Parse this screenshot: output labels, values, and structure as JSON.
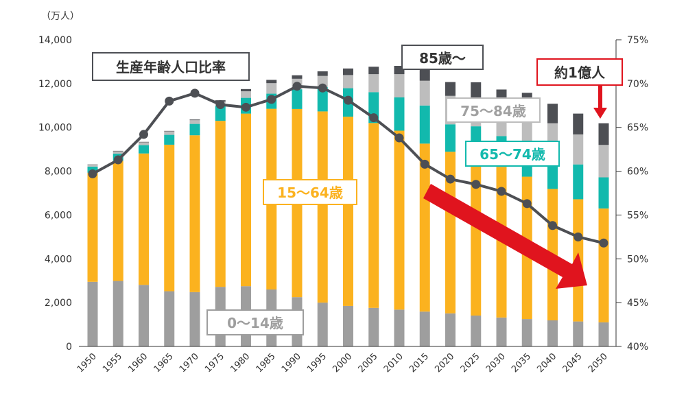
{
  "chart_data": {
    "type": "bar",
    "stacked": true,
    "title": "生産年齢人口比率",
    "y_unit_label": "（万人）",
    "ylim": [
      0,
      14000
    ],
    "y_ticks": [
      "0",
      "2,000",
      "4,000",
      "6,000",
      "8,000",
      "10,000",
      "12,000",
      "14,000"
    ],
    "y2lim": [
      40,
      75
    ],
    "y2_ticks": [
      "40%",
      "45%",
      "50%",
      "55%",
      "60%",
      "65%",
      "70%",
      "75%"
    ],
    "categories": [
      "1950",
      "1955",
      "1960",
      "1965",
      "1970",
      "1975",
      "1980",
      "1985",
      "1990",
      "1995",
      "2000",
      "2005",
      "2010",
      "2015",
      "2020",
      "2025",
      "2030",
      "2035",
      "2040",
      "2045",
      "2050"
    ],
    "series": [
      {
        "name": "0〜14歳",
        "color": "#9e9e9e",
        "values": [
          2950,
          2990,
          2810,
          2520,
          2480,
          2720,
          2750,
          2600,
          2250,
          2000,
          1850,
          1760,
          1680,
          1590,
          1510,
          1410,
          1320,
          1250,
          1190,
          1140,
          1100
        ]
      },
      {
        "name": "15〜64歳",
        "color": "#fbb21f",
        "values": [
          4980,
          5490,
          6000,
          6690,
          7160,
          7580,
          7880,
          8250,
          8590,
          8730,
          8640,
          8440,
          8170,
          7670,
          7380,
          7170,
          6880,
          6500,
          6000,
          5580,
          5200
        ]
      },
      {
        "name": "65〜74歳",
        "color": "#12b9ad",
        "values": [
          280,
          320,
          380,
          450,
          520,
          680,
          720,
          690,
          900,
          1110,
          1300,
          1410,
          1520,
          1740,
          1250,
          1470,
          1400,
          1420,
          1640,
          1590,
          1420
        ]
      },
      {
        "name": "75〜84歳",
        "color": "#bdbdbd",
        "values": [
          90,
          110,
          130,
          160,
          170,
          200,
          300,
          480,
          480,
          510,
          600,
          820,
          1060,
          1130,
          1300,
          1160,
          1150,
          1400,
          1360,
          1370,
          1480
        ]
      },
      {
        "name": "85歳〜",
        "color": "#4d4f54",
        "values": [
          10,
          20,
          20,
          20,
          30,
          60,
          100,
          150,
          160,
          210,
          300,
          340,
          380,
          510,
          630,
          850,
          980,
          1010,
          890,
          950,
          990
        ]
      }
    ],
    "line_series": {
      "name": "生産年齢人口比率",
      "color": "#4d4f54",
      "axis": "right",
      "values": [
        59.7,
        61.3,
        64.2,
        68.0,
        68.9,
        67.6,
        67.3,
        68.2,
        69.7,
        69.5,
        68.1,
        66.1,
        63.8,
        60.8,
        59.1,
        58.5,
        57.7,
        56.3,
        53.8,
        52.5,
        51.8
      ]
    },
    "annotations": [
      {
        "text": "85歳〜",
        "target": "85歳〜"
      },
      {
        "text": "75〜84歳",
        "target": "75〜84歳"
      },
      {
        "text": "65〜74歳",
        "target": "65〜74歳"
      },
      {
        "text": "15〜64歳",
        "target": "15〜64歳"
      },
      {
        "text": "0〜14歳",
        "target": "0〜14歳"
      },
      {
        "text": "約1億人",
        "target": "2050 total"
      }
    ],
    "colors": {
      "accent_red": "#e0141e",
      "axis": "#333333",
      "box_border": "#4d4f54"
    }
  }
}
